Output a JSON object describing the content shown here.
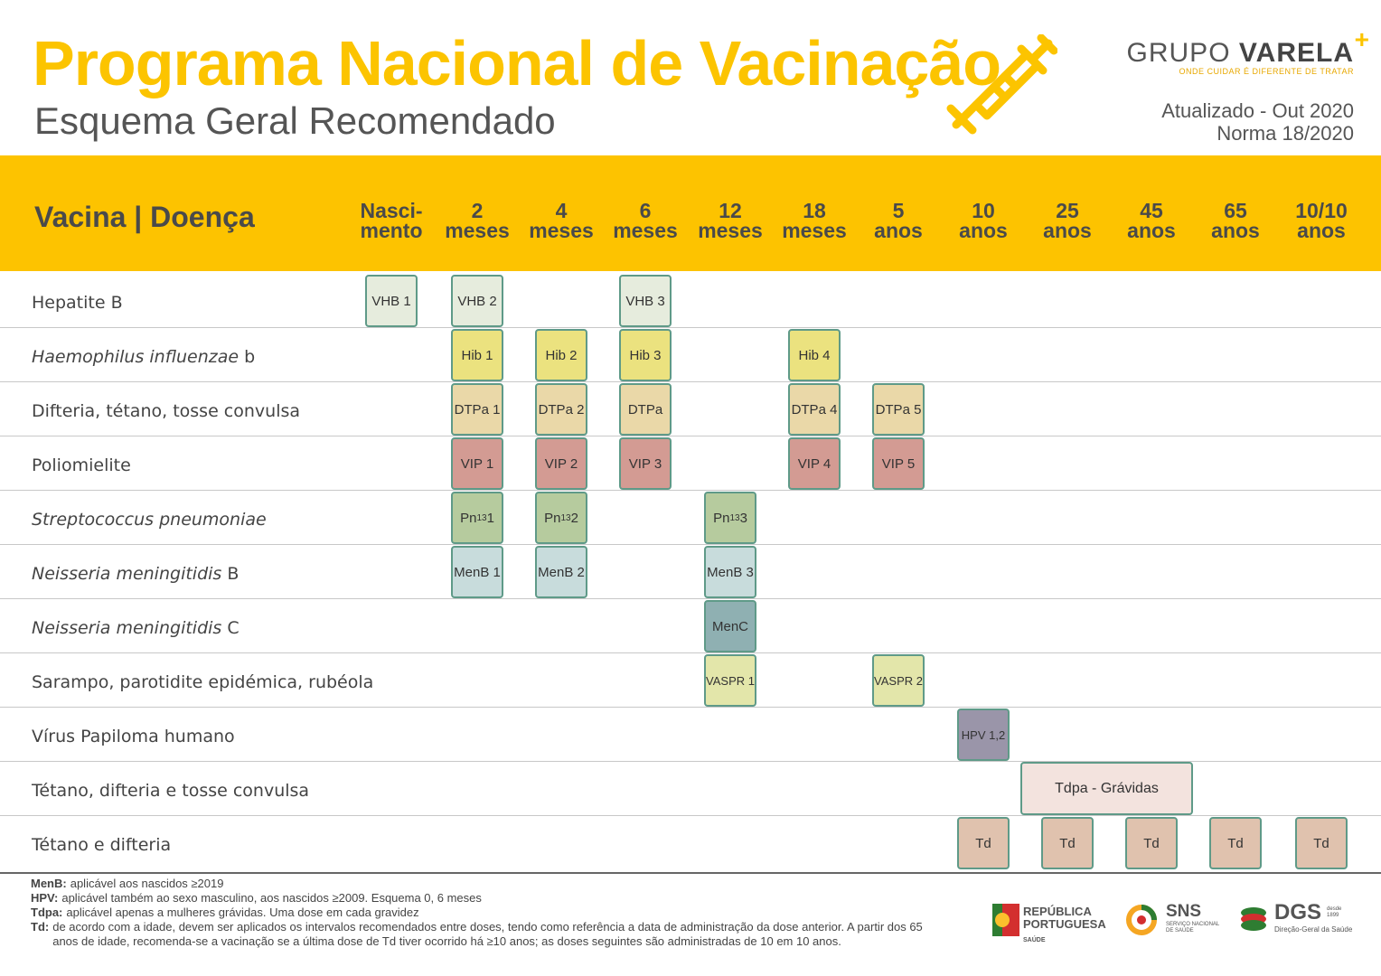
{
  "header": {
    "title": "Programa Nacional de Vacinação",
    "subtitle": "Esquema Geral Recomendado",
    "brand_name_light": "GRUPO ",
    "brand_name_bold": "VARELA",
    "brand_plus": "+",
    "brand_tagline": "ONDE CUIDAR É DIFERENTE DE TRATAR",
    "updated": "Atualizado - Out 2020",
    "norma": "Norma 18/2020"
  },
  "table": {
    "column_header": "Vacina | Doença",
    "ages": [
      {
        "l1": "Nasci-",
        "l2": "mento"
      },
      {
        "l1": "2",
        "l2": "meses"
      },
      {
        "l1": "4",
        "l2": "meses"
      },
      {
        "l1": "6",
        "l2": "meses"
      },
      {
        "l1": "12",
        "l2": "meses"
      },
      {
        "l1": "18",
        "l2": "meses"
      },
      {
        "l1": "5",
        "l2": "anos"
      },
      {
        "l1": "10",
        "l2": "anos"
      },
      {
        "l1": "25",
        "l2": "anos"
      },
      {
        "l1": "45",
        "l2": "anos"
      },
      {
        "l1": "65",
        "l2": "anos"
      },
      {
        "l1": "10/10",
        "l2": "anos"
      }
    ],
    "rows": [
      {
        "label": "Hepatite B",
        "italic": "",
        "suffix": "",
        "doses": [
          {
            "col": 0,
            "text": "VHB 1"
          },
          {
            "col": 1,
            "text": "VHB 2"
          },
          {
            "col": 3,
            "text": "VHB 3"
          }
        ],
        "color": "#e6ecdd"
      },
      {
        "label": "",
        "italic": "Haemophilus influenzae",
        "suffix": " b",
        "doses": [
          {
            "col": 1,
            "text": "Hib 1"
          },
          {
            "col": 2,
            "text": "Hib 2"
          },
          {
            "col": 3,
            "text": "Hib 3"
          },
          {
            "col": 5,
            "text": "Hib 4"
          }
        ],
        "color": "#ebe27f"
      },
      {
        "label": "Difteria, tétano, tosse convulsa",
        "italic": "",
        "suffix": "",
        "doses": [
          {
            "col": 1,
            "text": "DTPa 1"
          },
          {
            "col": 2,
            "text": "DTPa 2"
          },
          {
            "col": 3,
            "text": "DTPa"
          },
          {
            "col": 5,
            "text": "DTPa 4"
          },
          {
            "col": 6,
            "text": "DTPa 5"
          }
        ],
        "color": "#ead8a8"
      },
      {
        "label": "Poliomielite",
        "italic": "",
        "suffix": "",
        "doses": [
          {
            "col": 1,
            "text": "VIP 1"
          },
          {
            "col": 2,
            "text": "VIP 2"
          },
          {
            "col": 3,
            "text": "VIP 3"
          },
          {
            "col": 5,
            "text": "VIP 4"
          },
          {
            "col": 6,
            "text": "VIP 5"
          }
        ],
        "color": "#d39b93"
      },
      {
        "label": "",
        "italic": "Streptococcus pneumoniae",
        "suffix": "",
        "doses": [
          {
            "col": 1,
            "text": "Pn13 1"
          },
          {
            "col": 2,
            "text": "Pn13 2"
          },
          {
            "col": 4,
            "text": "Pn13 3"
          }
        ],
        "color": "#b6cb9e"
      },
      {
        "label": "",
        "italic": "Neisseria meningitidis",
        "suffix": " B",
        "doses": [
          {
            "col": 1,
            "text": "MenB 1"
          },
          {
            "col": 2,
            "text": "MenB 2"
          },
          {
            "col": 4,
            "text": "MenB 3"
          }
        ],
        "color": "#c8dcdc"
      },
      {
        "label": "",
        "italic": "Neisseria meningitidis",
        "suffix": " C",
        "doses": [
          {
            "col": 4,
            "text": "MenC"
          }
        ],
        "color": "#8fb0b2"
      },
      {
        "label": "Sarampo, parotidite epidémica, rubéola",
        "italic": "",
        "suffix": "",
        "doses": [
          {
            "col": 4,
            "text": "VASPR 1"
          },
          {
            "col": 6,
            "text": "VASPR 2"
          }
        ],
        "color": "#e3e6aa"
      },
      {
        "label": "Vírus Papiloma humano",
        "italic": "",
        "suffix": "",
        "doses": [
          {
            "col": 7,
            "text": "HPV 1,2"
          }
        ],
        "color": "#9a95a9"
      },
      {
        "label": "Tétano, difteria e tosse convulsa",
        "italic": "",
        "suffix": "",
        "doses": [
          {
            "col": 8,
            "span": 2,
            "text": "Tdpa - Grávidas"
          }
        ],
        "color": "#f3e3de"
      },
      {
        "label": "Tétano e difteria",
        "italic": "",
        "suffix": "",
        "doses": [
          {
            "col": 7,
            "text": "Td"
          },
          {
            "col": 8,
            "text": "Td"
          },
          {
            "col": 9,
            "text": "Td"
          },
          {
            "col": 10,
            "text": "Td"
          },
          {
            "col": 11,
            "text": "Td"
          }
        ],
        "color": "#e0c2ae"
      }
    ]
  },
  "notes": [
    {
      "term": "MenB:",
      "text": "aplicável aos nascidos ≥2019"
    },
    {
      "term": "HPV:",
      "text": "aplicável também ao sexo masculino, aos nascidos ≥2009. Esquema 0, 6 meses"
    },
    {
      "term": "Tdpa:",
      "text": "aplicável apenas a mulheres grávidas. Uma dose em cada gravidez"
    },
    {
      "term": "Td:",
      "text": "de acordo com a idade, devem ser aplicados os intervalos recomendados entre doses, tendo como referência a data de administração da dose anterior. A partir dos 65 anos de idade, recomenda-se a vacinação se a última dose de Td tiver ocorrido há ≥10 anos; as doses seguintes são administradas de 10 em 10 anos."
    }
  ],
  "logos": {
    "republica_l1": "REPÚBLICA",
    "republica_l2": "PORTUGUESA",
    "republica_l3": "SAÚDE",
    "sns": "SNS",
    "sns_sub1": "SERVIÇO NACIONAL",
    "sns_sub2": "DE SAÚDE",
    "dgs": "DGS",
    "dgs_since": "desde 1899",
    "dgs_sub": "Direção-Geral da Saúde"
  },
  "colors": {
    "brand_yellow": "#fdc300",
    "box_border": "#5f9a88"
  }
}
